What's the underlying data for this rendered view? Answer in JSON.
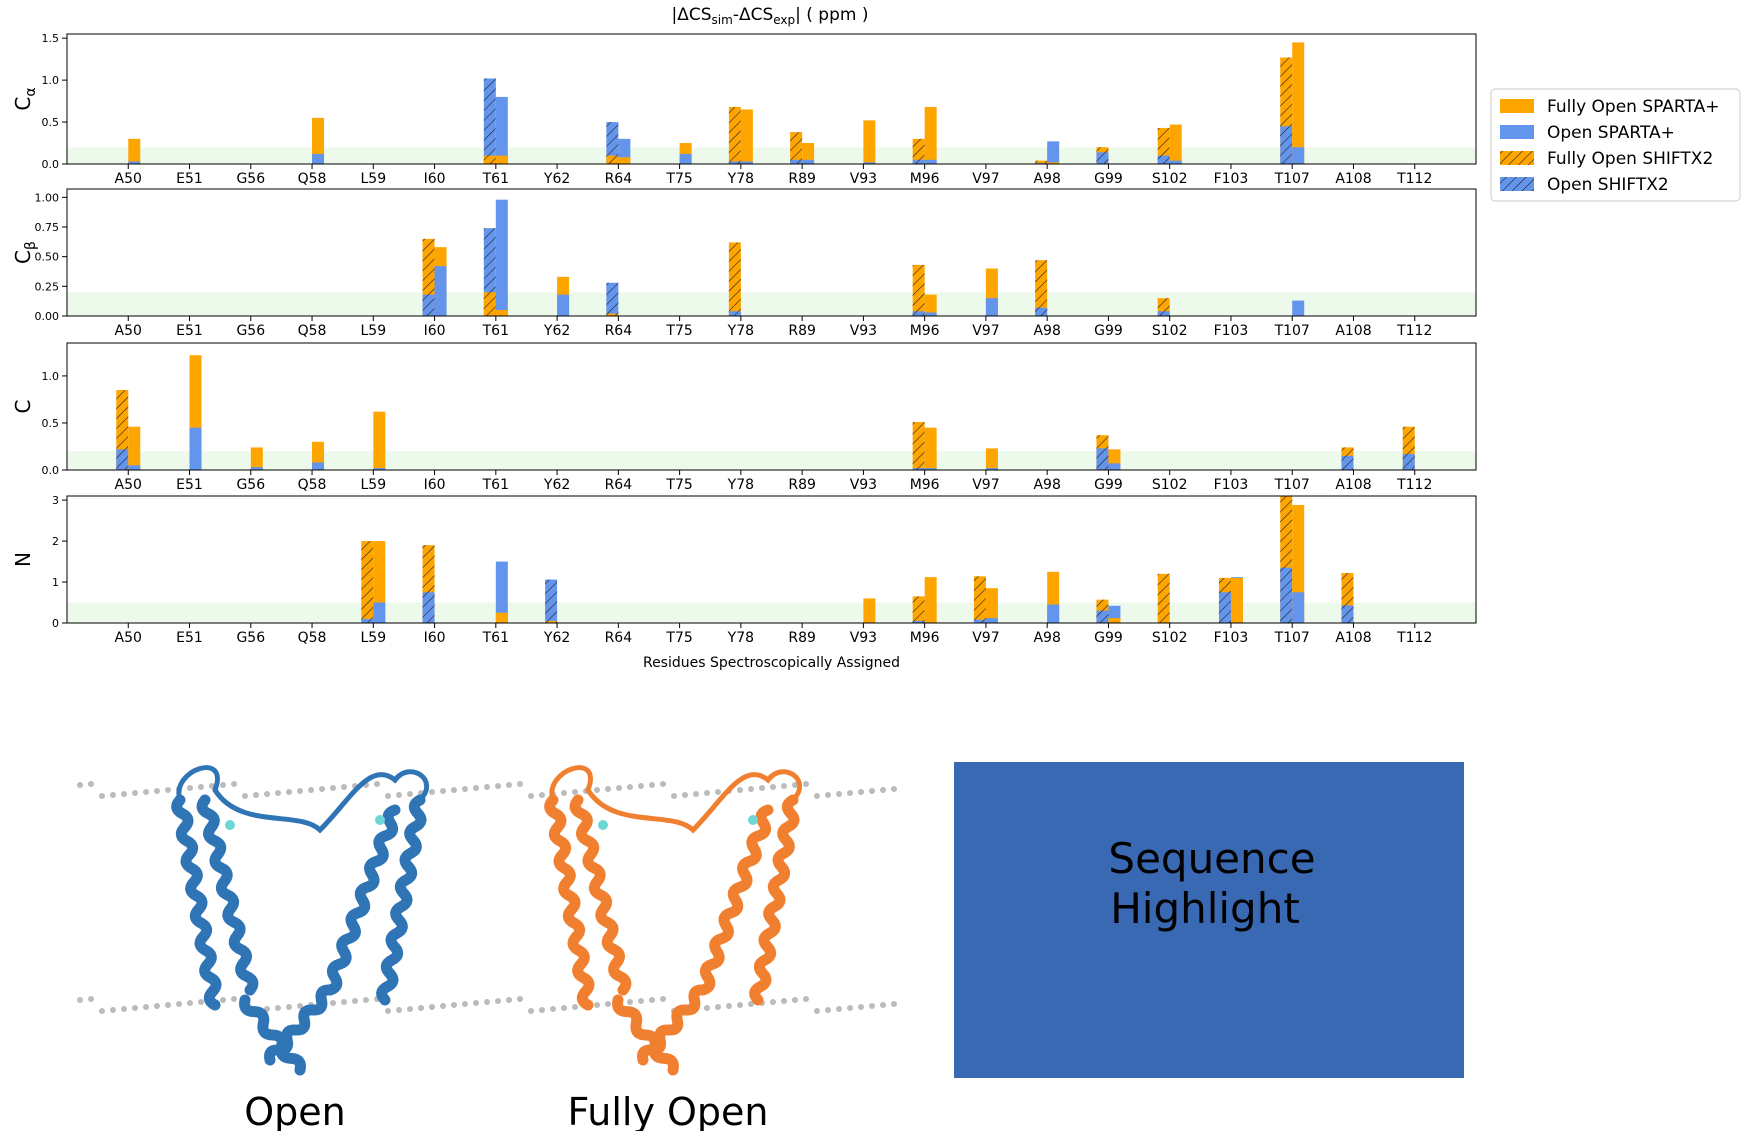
{
  "chart_data": [
    {
      "type": "bar",
      "title": {
        "pre": "|ΔCS",
        "sub1": "sim",
        "mid": "-ΔCS",
        "sub2": "exp",
        "post": "|  ( ppm )"
      },
      "ylabel": {
        "main": "C",
        "sub": "α"
      },
      "categories": [
        "A50",
        "E51",
        "G56",
        "Q58",
        "L59",
        "I60",
        "T61",
        "Y62",
        "R64",
        "T75",
        "Y78",
        "R89",
        "V93",
        "M96",
        "V97",
        "A98",
        "G99",
        "S102",
        "F103",
        "T107",
        "A108",
        "T112"
      ],
      "series": [
        {
          "name": "Fully Open SPARTA+",
          "color": "#ffa500",
          "hatch": false,
          "values": [
            0.3,
            null,
            null,
            0.55,
            null,
            null,
            0.1,
            null,
            0.08,
            0.25,
            0.65,
            0.25,
            0.52,
            0.68,
            null,
            0.02,
            null,
            0.47,
            null,
            1.45,
            null,
            null
          ]
        },
        {
          "name": "Open SPARTA+",
          "color": "#6495ed",
          "hatch": false,
          "values": [
            0.03,
            null,
            null,
            0.12,
            null,
            null,
            0.8,
            null,
            0.3,
            0.12,
            0.03,
            0.05,
            0.02,
            0.05,
            null,
            0.27,
            null,
            0.04,
            null,
            0.2,
            null,
            null
          ]
        },
        {
          "name": "Fully Open SHIFTX2",
          "color": "#ffa500",
          "hatch": true,
          "values": [
            null,
            null,
            null,
            null,
            null,
            null,
            0.1,
            null,
            0.1,
            null,
            0.68,
            0.38,
            null,
            0.3,
            null,
            0.04,
            0.2,
            0.43,
            null,
            1.27,
            null,
            null
          ]
        },
        {
          "name": "Open SHIFTX2",
          "color": "#6495ed",
          "hatch": true,
          "values": [
            null,
            null,
            null,
            null,
            null,
            null,
            1.02,
            null,
            0.5,
            null,
            0.03,
            0.05,
            null,
            0.05,
            null,
            0.01,
            0.14,
            0.1,
            null,
            0.45,
            null,
            null
          ]
        }
      ],
      "shaded_band": [
        0,
        0.2
      ],
      "ylim": [
        0,
        1.55
      ],
      "yticks": [
        {
          "value": 0,
          "label": "0.0"
        },
        {
          "value": 0.5,
          "label": "0.5"
        },
        {
          "value": 1,
          "label": "1.0"
        },
        {
          "value": 1.5,
          "label": "1.5"
        }
      ]
    },
    {
      "type": "bar",
      "ylabel": {
        "main": "C",
        "sub": "β"
      },
      "categories": [
        "A50",
        "E51",
        "G56",
        "Q58",
        "L59",
        "I60",
        "T61",
        "Y62",
        "R64",
        "T75",
        "Y78",
        "R89",
        "V93",
        "M96",
        "V97",
        "A98",
        "G99",
        "S102",
        "F103",
        "T107",
        "A108",
        "T112"
      ],
      "series": [
        {
          "name": "Fully Open SPARTA+",
          "color": "#ffa500",
          "hatch": false,
          "values": [
            null,
            null,
            null,
            null,
            null,
            0.58,
            0.05,
            0.33,
            null,
            null,
            null,
            null,
            null,
            0.18,
            0.4,
            null,
            null,
            null,
            null,
            0,
            null,
            null
          ]
        },
        {
          "name": "Open SPARTA+",
          "color": "#6495ed",
          "hatch": false,
          "values": [
            null,
            null,
            null,
            null,
            null,
            0.42,
            0.98,
            0.18,
            null,
            null,
            null,
            null,
            null,
            0.03,
            0.15,
            null,
            null,
            null,
            null,
            0.13,
            null,
            null
          ]
        },
        {
          "name": "Fully Open SHIFTX2",
          "color": "#ffa500",
          "hatch": true,
          "values": [
            null,
            null,
            null,
            null,
            null,
            0.65,
            0.2,
            null,
            0.02,
            null,
            0.62,
            null,
            null,
            0.43,
            null,
            0.47,
            null,
            0.15,
            null,
            null,
            null,
            null
          ]
        },
        {
          "name": "Open SHIFTX2",
          "color": "#6495ed",
          "hatch": true,
          "values": [
            null,
            null,
            null,
            null,
            null,
            0.18,
            0.74,
            null,
            0.28,
            null,
            0.04,
            null,
            null,
            0.04,
            null,
            0.07,
            null,
            0.04,
            null,
            null,
            null,
            null
          ]
        }
      ],
      "shaded_band": [
        0,
        0.2
      ],
      "ylim": [
        0,
        1.07
      ],
      "yticks": [
        {
          "value": 0,
          "label": "0.00"
        },
        {
          "value": 0.25,
          "label": "0.25"
        },
        {
          "value": 0.5,
          "label": "0.50"
        },
        {
          "value": 0.75,
          "label": "0.75"
        },
        {
          "value": 1,
          "label": "1.00"
        }
      ]
    },
    {
      "type": "bar",
      "ylabel": {
        "main": "C"
      },
      "categories": [
        "A50",
        "E51",
        "G56",
        "Q58",
        "L59",
        "I60",
        "T61",
        "Y62",
        "R64",
        "T75",
        "Y78",
        "R89",
        "V93",
        "M96",
        "V97",
        "A98",
        "G99",
        "S102",
        "F103",
        "T107",
        "A108",
        "T112"
      ],
      "series": [
        {
          "name": "Fully Open SPARTA+",
          "color": "#ffa500",
          "hatch": false,
          "values": [
            0.46,
            1.22,
            0.24,
            0.3,
            0.62,
            null,
            null,
            null,
            null,
            null,
            null,
            null,
            null,
            0.45,
            0.23,
            null,
            0.22,
            null,
            null,
            null,
            null,
            null
          ]
        },
        {
          "name": "Open SPARTA+",
          "color": "#6495ed",
          "hatch": false,
          "values": [
            0.05,
            0.45,
            0.03,
            0.08,
            0.02,
            null,
            null,
            null,
            null,
            null,
            null,
            null,
            null,
            0.02,
            0.02,
            null,
            0.07,
            null,
            null,
            null,
            null,
            null
          ]
        },
        {
          "name": "Fully Open SHIFTX2",
          "color": "#ffa500",
          "hatch": true,
          "values": [
            0.85,
            null,
            null,
            null,
            null,
            null,
            null,
            null,
            null,
            null,
            null,
            null,
            null,
            0.51,
            null,
            null,
            0.37,
            null,
            null,
            null,
            0.24,
            0.46
          ]
        },
        {
          "name": "Open SHIFTX2",
          "color": "#6495ed",
          "hatch": true,
          "values": [
            0.22,
            null,
            null,
            null,
            null,
            null,
            null,
            null,
            null,
            null,
            null,
            null,
            null,
            0.02,
            null,
            null,
            0.23,
            null,
            null,
            null,
            0.15,
            0.17
          ]
        }
      ],
      "shaded_band": [
        0,
        0.2
      ],
      "ylim": [
        0,
        1.35
      ],
      "yticks": [
        {
          "value": 0,
          "label": "0.0"
        },
        {
          "value": 0.5,
          "label": "0.5"
        },
        {
          "value": 1,
          "label": "1.0"
        }
      ]
    },
    {
      "type": "bar",
      "ylabel": {
        "main": "N"
      },
      "xlabel": "Residues Spectroscopically Assigned",
      "categories": [
        "A50",
        "E51",
        "G56",
        "Q58",
        "L59",
        "I60",
        "T61",
        "Y62",
        "R64",
        "T75",
        "Y78",
        "R89",
        "V93",
        "M96",
        "V97",
        "A98",
        "G99",
        "S102",
        "F103",
        "T107",
        "A108",
        "T112"
      ],
      "series": [
        {
          "name": "Fully Open SPARTA+",
          "color": "#ffa500",
          "hatch": false,
          "values": [
            null,
            null,
            null,
            null,
            2.0,
            null,
            0.25,
            null,
            null,
            null,
            null,
            null,
            0.6,
            1.12,
            0.85,
            1.25,
            0.12,
            null,
            1.1,
            2.88,
            null,
            null
          ]
        },
        {
          "name": "Open SPARTA+",
          "color": "#6495ed",
          "hatch": false,
          "values": [
            null,
            null,
            null,
            null,
            0.5,
            null,
            1.5,
            null,
            null,
            null,
            null,
            null,
            null,
            null,
            0.12,
            0.45,
            0.42,
            null,
            1.12,
            0.75,
            null,
            null
          ]
        },
        {
          "name": "Fully Open SHIFTX2",
          "color": "#ffa500",
          "hatch": true,
          "values": [
            null,
            null,
            null,
            null,
            2.0,
            1.9,
            null,
            0.05,
            null,
            null,
            null,
            null,
            null,
            0.65,
            1.14,
            null,
            0.57,
            1.2,
            1.1,
            3.1,
            1.22,
            null
          ]
        },
        {
          "name": "Open SHIFTX2",
          "color": "#6495ed",
          "hatch": true,
          "values": [
            null,
            null,
            null,
            null,
            0.1,
            0.75,
            null,
            1.06,
            null,
            null,
            null,
            null,
            null,
            0.05,
            0.08,
            null,
            0.3,
            null,
            0.75,
            1.35,
            0.43,
            null
          ]
        }
      ],
      "shaded_band": [
        0,
        0.5
      ],
      "ylim": [
        0,
        3.1
      ],
      "yticks": [
        0,
        1,
        2,
        3
      ]
    }
  ],
  "structures": [
    {
      "label": "Open"
    },
    {
      "label": "Fully Open"
    }
  ],
  "highlight_box": {
    "text_lines": [
      "Sequence",
      "Highlight"
    ]
  }
}
